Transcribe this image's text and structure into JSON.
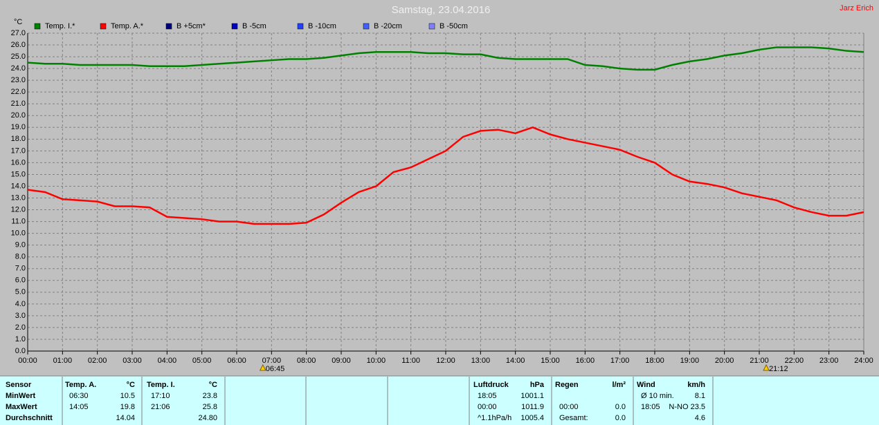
{
  "chart_data": {
    "type": "line",
    "title": "Samstag, 23.04.2016",
    "author": "Jarz Erich",
    "ylabel": "°C",
    "x": [
      0,
      0.5,
      1,
      1.5,
      2,
      2.5,
      3,
      3.5,
      4,
      4.5,
      5,
      5.5,
      6,
      6.5,
      7,
      7.5,
      8,
      8.5,
      9,
      9.5,
      10,
      10.5,
      11,
      11.5,
      12,
      12.5,
      13,
      13.5,
      14,
      14.5,
      15,
      15.5,
      16,
      16.5,
      17,
      17.5,
      18,
      18.5,
      19,
      19.5,
      20,
      20.5,
      21,
      21.5,
      22,
      22.5,
      23,
      23.5,
      24
    ],
    "series": [
      {
        "name": "Temp. I.*",
        "color": "#008000",
        "values": [
          24.5,
          24.4,
          24.4,
          24.3,
          24.3,
          24.3,
          24.3,
          24.2,
          24.2,
          24.2,
          24.3,
          24.4,
          24.5,
          24.6,
          24.7,
          24.8,
          24.8,
          24.9,
          25.1,
          25.3,
          25.4,
          25.4,
          25.4,
          25.3,
          25.3,
          25.2,
          25.2,
          24.9,
          24.8,
          24.8,
          24.8,
          24.8,
          24.3,
          24.2,
          24.0,
          23.9,
          23.9,
          24.3,
          24.6,
          24.8,
          25.1,
          25.3,
          25.6,
          25.8,
          25.8,
          25.8,
          25.7,
          25.5,
          25.4
        ]
      },
      {
        "name": "Temp. A.*",
        "color": "#ff0000",
        "values": [
          13.7,
          13.5,
          12.9,
          12.8,
          12.7,
          12.3,
          12.3,
          12.2,
          11.4,
          11.3,
          11.2,
          11.0,
          11.0,
          10.8,
          10.8,
          10.8,
          10.9,
          11.6,
          12.6,
          13.5,
          14.0,
          15.2,
          15.6,
          16.3,
          17.0,
          18.2,
          18.7,
          18.8,
          18.5,
          19.0,
          18.4,
          18.0,
          17.7,
          17.4,
          17.1,
          16.5,
          16.0,
          15.0,
          14.4,
          14.2,
          13.9,
          13.4,
          13.1,
          12.8,
          12.2,
          11.8,
          11.5,
          11.5,
          11.8
        ]
      }
    ],
    "legend_extra": [
      {
        "name": "B +5cm*",
        "color": "#000080"
      },
      {
        "name": "B -5cm",
        "color": "#0000c0"
      },
      {
        "name": "B -10cm",
        "color": "#2040ff"
      },
      {
        "name": "B -20cm",
        "color": "#4060ff"
      },
      {
        "name": "B -50cm",
        "color": "#8080ff"
      }
    ],
    "xlim": [
      0,
      24
    ],
    "xticks": [
      {
        "value": 0,
        "label": "00:00"
      },
      {
        "value": 1,
        "label": "01:00"
      },
      {
        "value": 2,
        "label": "02:00"
      },
      {
        "value": 3,
        "label": "03:00"
      },
      {
        "value": 4,
        "label": "04:00"
      },
      {
        "value": 5,
        "label": "05:00"
      },
      {
        "value": 6,
        "label": "06:00"
      },
      {
        "value": 7,
        "label": "07:00"
      },
      {
        "value": 8,
        "label": "08:00"
      },
      {
        "value": 9,
        "label": "09:00"
      },
      {
        "value": 10,
        "label": "10:00"
      },
      {
        "value": 11,
        "label": "11:00"
      },
      {
        "value": 12,
        "label": "12:00"
      },
      {
        "value": 13,
        "label": "13:00"
      },
      {
        "value": 14,
        "label": "14:00"
      },
      {
        "value": 15,
        "label": "15:00"
      },
      {
        "value": 16,
        "label": "16:00"
      },
      {
        "value": 17,
        "label": "17:00"
      },
      {
        "value": 18,
        "label": "18:00"
      },
      {
        "value": 19,
        "label": "19:00"
      },
      {
        "value": 20,
        "label": "20:00"
      },
      {
        "value": 21,
        "label": "21:00"
      },
      {
        "value": 22,
        "label": "22:00"
      },
      {
        "value": 23,
        "label": "23:00"
      },
      {
        "value": 24,
        "label": "24:00"
      }
    ],
    "ylim": [
      0,
      27
    ],
    "yticks": [
      {
        "value": 0,
        "label": "0.0"
      },
      {
        "value": 1,
        "label": "1.0"
      },
      {
        "value": 2,
        "label": "2.0"
      },
      {
        "value": 3,
        "label": "3.0"
      },
      {
        "value": 4,
        "label": "4.0"
      },
      {
        "value": 5,
        "label": "5.0"
      },
      {
        "value": 6,
        "label": "6.0"
      },
      {
        "value": 7,
        "label": "7.0"
      },
      {
        "value": 8,
        "label": "8.0"
      },
      {
        "value": 9,
        "label": "9.0"
      },
      {
        "value": 10,
        "label": "10.0"
      },
      {
        "value": 11,
        "label": "11.0"
      },
      {
        "value": 12,
        "label": "12.0"
      },
      {
        "value": 13,
        "label": "13.0"
      },
      {
        "value": 14,
        "label": "14.0"
      },
      {
        "value": 15,
        "label": "15.0"
      },
      {
        "value": 16,
        "label": "16.0"
      },
      {
        "value": 17,
        "label": "17.0"
      },
      {
        "value": 18,
        "label": "18.0"
      },
      {
        "value": 19,
        "label": "19.0"
      },
      {
        "value": 20,
        "label": "20.0"
      },
      {
        "value": 21,
        "label": "21.0"
      },
      {
        "value": 22,
        "label": "22.0"
      },
      {
        "value": 23,
        "label": "23.0"
      },
      {
        "value": 24,
        "label": "24.0"
      },
      {
        "value": 25,
        "label": "25.0"
      },
      {
        "value": 26,
        "label": "26.0"
      },
      {
        "value": 27,
        "label": "27.0"
      }
    ],
    "grid": true,
    "annotations": [
      {
        "x": 6.75,
        "label": "06:45"
      },
      {
        "x": 21.2,
        "label": "21:12"
      }
    ]
  },
  "table": {
    "row_labels": [
      "Sensor",
      "MinWert",
      "MaxWert",
      "Durchschnitt"
    ],
    "blocks": [
      {
        "header": [
          "Temp. A.",
          "°C"
        ],
        "rows": [
          [
            "06:30",
            "10.5"
          ],
          [
            "14:05",
            "19.8"
          ],
          [
            null,
            "14.04"
          ]
        ]
      },
      {
        "header": [
          "Temp. I.",
          "°C"
        ],
        "rows": [
          [
            "17:10",
            "23.8"
          ],
          [
            "21:06",
            "25.8"
          ],
          [
            null,
            "24.80"
          ]
        ]
      },
      {
        "header": [
          "Luftdruck",
          "hPa"
        ],
        "rows": [
          [
            "18:05",
            "1001.1"
          ],
          [
            "00:00",
            "1011.9"
          ],
          [
            "^1.1hPa/h",
            "1005.4"
          ]
        ]
      },
      {
        "header": [
          "Regen",
          "l/m²"
        ],
        "rows": [
          [
            null,
            null
          ],
          [
            "00:00",
            "0.0"
          ],
          [
            "Gesamt:",
            "0.0"
          ]
        ]
      },
      {
        "header": [
          "Wind",
          "km/h"
        ],
        "rows": [
          [
            "Ø 10 min.",
            "8.1"
          ],
          [
            "18:05",
            "N-NO 23.5"
          ],
          [
            null,
            "4.6"
          ]
        ]
      }
    ]
  }
}
